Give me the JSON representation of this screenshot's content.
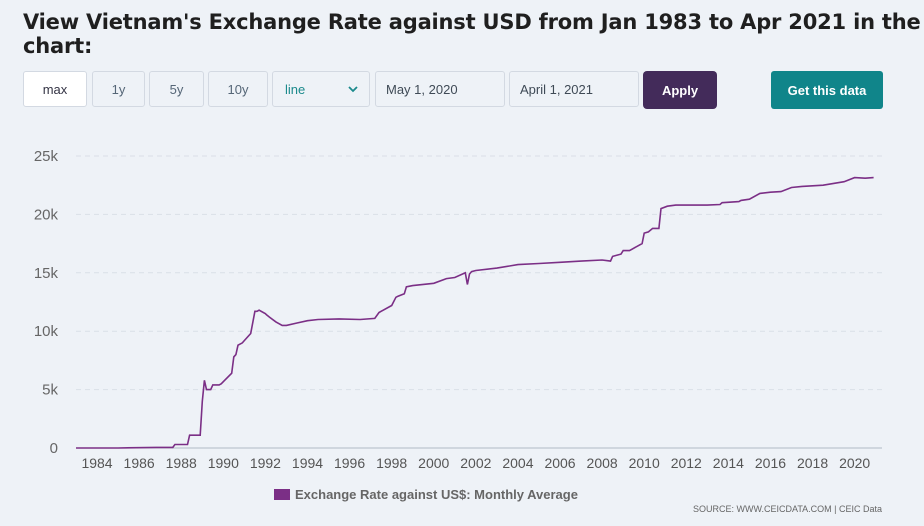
{
  "title": "View Vietnam's Exchange Rate against USD from Jan 1983 to Apr 2021 in the chart:",
  "controls": {
    "range_buttons": [
      "max",
      "1y",
      "5y",
      "10y"
    ],
    "chart_type_select": "line",
    "date_from": "May 1, 2020",
    "date_to": "April 1, 2021",
    "apply_label": "Apply",
    "get_data_label": "Get this data"
  },
  "legend_label": "Exchange Rate against US$: Monthly Average",
  "source": "SOURCE: WWW.CEICDATA.COM | CEIC Data",
  "colors": {
    "series": "#7b2f86",
    "apply": "#432b5a",
    "get_data": "#10858a",
    "select_text": "#1b8a8c"
  },
  "icons": {
    "select": "chevron-down-icon"
  },
  "chart_data": {
    "type": "line",
    "title": "",
    "xlabel": "",
    "ylabel": "",
    "ylim": [
      0,
      25000
    ],
    "yticks": [
      0,
      5000,
      10000,
      15000,
      20000,
      25000
    ],
    "ytick_labels": [
      "0",
      "5k",
      "10k",
      "15k",
      "20k",
      "25k"
    ],
    "xticks": [
      1984,
      1986,
      1988,
      1990,
      1992,
      1994,
      1996,
      1998,
      2000,
      2002,
      2004,
      2006,
      2008,
      2010,
      2012,
      2014,
      2016,
      2018,
      2020
    ],
    "xlim": [
      1983.0,
      2021.3
    ],
    "grid": true,
    "legend_position": "bottom",
    "series": [
      {
        "name": "Exchange Rate against US$: Monthly Average",
        "x": [
          1983.0,
          1985.0,
          1986.8,
          1987.6,
          1987.7,
          1988.3,
          1988.4,
          1988.9,
          1989.0,
          1989.1,
          1989.2,
          1989.4,
          1989.5,
          1989.8,
          1989.9,
          1990.4,
          1990.5,
          1990.6,
          1990.7,
          1990.9,
          1991.0,
          1991.3,
          1991.5,
          1991.6,
          1991.7,
          1992.0,
          1992.05,
          1992.2,
          1992.5,
          1992.8,
          1993.0,
          1993.5,
          1994.0,
          1994.5,
          1995.5,
          1996.5,
          1997.2,
          1997.4,
          1997.5,
          1998.0,
          1998.2,
          1998.3,
          1998.6,
          1998.7,
          1999.0,
          2000.0,
          2000.6,
          2001.0,
          2001.5,
          2001.6,
          2001.7,
          2001.8,
          2002.0,
          2003.0,
          2004.0,
          2005.0,
          2006.0,
          2007.0,
          2008.0,
          2008.4,
          2008.5,
          2008.9,
          2009.0,
          2009.3,
          2009.4,
          2009.9,
          2010.0,
          2010.2,
          2010.4,
          2010.7,
          2010.8,
          2011.1,
          2011.5,
          2012.0,
          2013.0,
          2013.6,
          2013.7,
          2014.5,
          2014.6,
          2015.0,
          2015.5,
          2016.0,
          2016.5,
          2017.0,
          2017.5,
          2018.0,
          2018.5,
          2019.0,
          2019.5,
          2020.0,
          2020.5,
          2020.9
        ],
        "values": [
          0,
          0,
          50,
          50,
          300,
          300,
          1100,
          1100,
          4000,
          5800,
          5000,
          5000,
          5400,
          5400,
          5500,
          6400,
          7800,
          8000,
          8800,
          9000,
          9200,
          9800,
          11700,
          11700,
          11800,
          11500,
          11400,
          11200,
          10800,
          10500,
          10500,
          10700,
          10900,
          11000,
          11050,
          11000,
          11100,
          11600,
          11700,
          12200,
          12900,
          13000,
          13200,
          13800,
          13900,
          14100,
          14500,
          14600,
          15000,
          14000,
          14900,
          15100,
          15200,
          15400,
          15700,
          15800,
          15900,
          16000,
          16100,
          16000,
          16400,
          16600,
          16900,
          16900,
          17000,
          17500,
          18400,
          18500,
          18800,
          18800,
          20500,
          20700,
          20800,
          20800,
          20800,
          20850,
          21000,
          21100,
          21200,
          21300,
          21800,
          21900,
          21950,
          22300,
          22400,
          22450,
          22500,
          22650,
          22800,
          23150,
          23100,
          23150
        ]
      }
    ]
  }
}
